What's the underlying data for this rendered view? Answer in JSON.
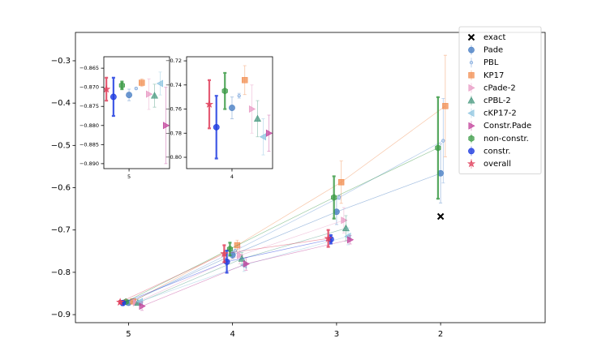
{
  "chart_data": {
    "type": "errorbar",
    "xlim": [
      5.51,
      0.995
    ],
    "xticks": [
      5,
      4,
      3,
      2
    ],
    "ylim": [
      -0.919,
      -0.233
    ],
    "yticks": [
      {
        "value": -0.3,
        "label": "−0.3"
      },
      {
        "value": -0.4,
        "label": "−0.4"
      },
      {
        "value": -0.5,
        "label": "−0.5"
      },
      {
        "value": -0.6,
        "label": "−0.6"
      },
      {
        "value": -0.7,
        "label": "−0.7"
      },
      {
        "value": -0.8,
        "label": "−0.8"
      },
      {
        "value": -0.9,
        "label": "−0.9"
      }
    ],
    "legend": "upper right",
    "series": [
      {
        "name": "exact",
        "color": "#000000",
        "marker": "x",
        "x": [
          2
        ],
        "values": [
          -0.668
        ],
        "errors": [
          null
        ]
      },
      {
        "name": "Pade",
        "color": "#4a7fc4",
        "marker": "o",
        "x": [
          5,
          4,
          3,
          2
        ],
        "values": [
          -0.872,
          -0.759,
          -0.657,
          -0.566
        ],
        "errors": [
          0.0015,
          0.009,
          0.03,
          0.07
        ]
      },
      {
        "name": "PBL",
        "color": "#6a9ad8",
        "marker": ".",
        "x": [
          4.975,
          3.975,
          2.975,
          1.975
        ],
        "values": [
          -0.8703,
          -0.749,
          -0.623,
          -0.489
        ],
        "errors": [
          0.0002,
          0.002,
          0.005,
          0.1
        ]
      },
      {
        "name": "KP17",
        "color": "#f28c4e",
        "marker": "s",
        "x": [
          4.955,
          3.955,
          2.955,
          1.955
        ],
        "values": [
          -0.8688,
          -0.736,
          -0.587,
          -0.407
        ],
        "errors": [
          0.001,
          0.012,
          0.05,
          0.12
        ]
      },
      {
        "name": "cPade-2",
        "color": "#e89ac4",
        "marker": ">",
        "x": [
          4.93,
          3.93,
          2.93,
          null
        ],
        "values": [
          -0.8718,
          -0.76,
          -0.677,
          null
        ],
        "errors": [
          0.004,
          0.02,
          0.03,
          null
        ]
      },
      {
        "name": "cPBL-2",
        "color": "#4a9a80",
        "marker": "^",
        "x": [
          4.91,
          3.91,
          2.91,
          null
        ],
        "values": [
          -0.8722,
          -0.768,
          -0.696,
          null
        ],
        "errors": [
          0.003,
          0.015,
          0.03,
          null
        ]
      },
      {
        "name": "cKP17-2",
        "color": "#8cc4e0",
        "marker": "<",
        "x": [
          4.89,
          3.89,
          2.89,
          null
        ],
        "values": [
          -0.869,
          -0.783,
          -0.715,
          null
        ],
        "errors": [
          0.003,
          0.015,
          0.02,
          null
        ]
      },
      {
        "name": "Constr.Pade",
        "color": "#c2409a",
        "marker": ">",
        "x": [
          4.87,
          3.87,
          2.87,
          null
        ],
        "values": [
          -0.88,
          -0.78,
          -0.723,
          null
        ],
        "errors": [
          0.01,
          0.015,
          0.01,
          null
        ]
      },
      {
        "name": "non-constr.",
        "color": "#3a9a44",
        "marker": "h",
        "x": [
          5.025,
          4.025,
          3.025,
          2.025
        ],
        "values": [
          -0.8695,
          -0.745,
          -0.623,
          -0.506
        ],
        "errors": [
          0.001,
          0.015,
          0.05,
          0.12
        ]
      },
      {
        "name": "constr.",
        "color": "#1f3ce0",
        "marker": "o",
        "x": [
          5.055,
          4.055,
          3.055,
          null
        ],
        "values": [
          -0.8725,
          -0.775,
          -0.722,
          null
        ],
        "errors": [
          0.005,
          0.026,
          0.01,
          null
        ]
      },
      {
        "name": "overall",
        "color": "#e0405c",
        "marker": "*",
        "x": [
          5.08,
          4.08,
          3.08,
          null
        ],
        "values": [
          -0.8705,
          -0.756,
          -0.72,
          null
        ],
        "errors": [
          0.003,
          0.02,
          0.02,
          null
        ]
      }
    ],
    "insets": [
      {
        "xlim": [
          5.089,
          4.857
        ],
        "xticks": [
          5
        ],
        "ylim": [
          -0.8913,
          -0.862
        ],
        "yticks": [
          {
            "value": -0.865,
            "label": "−0.865"
          },
          {
            "value": -0.87,
            "label": "−0.870"
          },
          {
            "value": -0.875,
            "label": "−0.875"
          },
          {
            "value": -0.88,
            "label": "−0.880"
          },
          {
            "value": -0.885,
            "label": "−0.885"
          },
          {
            "value": -0.89,
            "label": "−0.890"
          }
        ]
      },
      {
        "xlim": [
          4.16,
          3.857
        ],
        "xticks": [
          4
        ],
        "ylim": [
          -0.8094,
          -0.7166
        ],
        "yticks": [
          {
            "value": -0.72,
            "label": "−0.72"
          },
          {
            "value": -0.74,
            "label": "−0.74"
          },
          {
            "value": -0.76,
            "label": "−0.76"
          },
          {
            "value": -0.78,
            "label": "−0.78"
          },
          {
            "value": -0.8,
            "label": "−0.80"
          }
        ]
      }
    ]
  }
}
